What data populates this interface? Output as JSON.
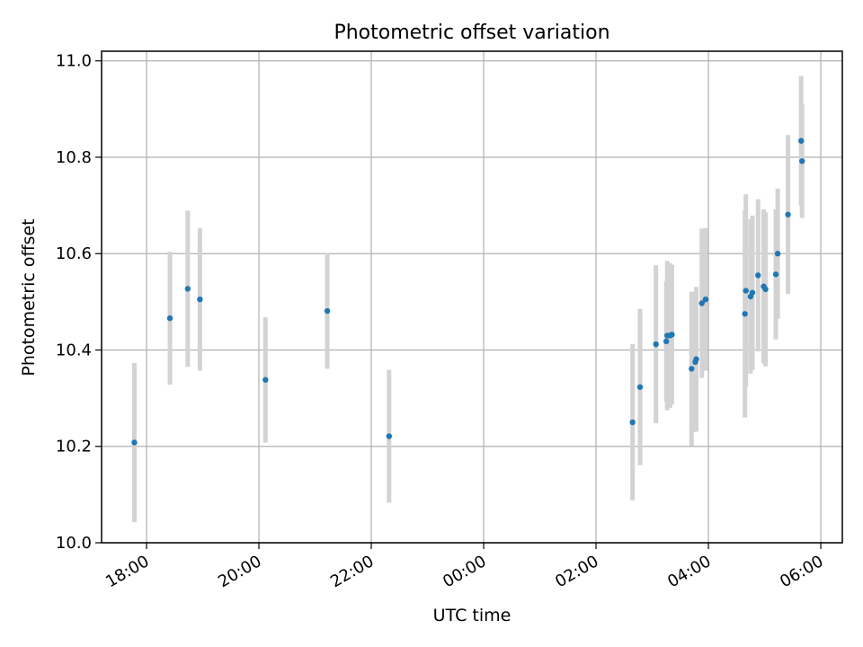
{
  "chart_data": {
    "type": "scatter",
    "title": "Photometric offset variation",
    "xlabel": "UTC time",
    "ylabel": "Photometric offset",
    "x_axis": "time",
    "xlim": [
      "17:12",
      "06:23"
    ],
    "ylim": [
      10.0,
      11.02
    ],
    "grid": true,
    "x_ticks": [
      {
        "value": "18:00",
        "label": "18:00"
      },
      {
        "value": "20:00",
        "label": "20:00"
      },
      {
        "value": "22:00",
        "label": "22:00"
      },
      {
        "value": "00:00",
        "label": "00:00"
      },
      {
        "value": "02:00",
        "label": "02:00"
      },
      {
        "value": "04:00",
        "label": "04:00"
      },
      {
        "value": "06:00",
        "label": "06:00"
      }
    ],
    "y_ticks": [
      {
        "value": 10.0,
        "label": "10.0"
      },
      {
        "value": 10.2,
        "label": "10.2"
      },
      {
        "value": 10.4,
        "label": "10.4"
      },
      {
        "value": 10.6,
        "label": "10.6"
      },
      {
        "value": 10.8,
        "label": "10.8"
      },
      {
        "value": 11.0,
        "label": "11.0"
      }
    ],
    "colors": {
      "point": "#1f77b4",
      "errorbar": "#d3d3d3",
      "grid": "#b0b0b0"
    },
    "points": [
      {
        "x": "17:47",
        "y": 10.208,
        "err": 0.165
      },
      {
        "x": "18:25",
        "y": 10.466,
        "err": 0.138
      },
      {
        "x": "18:44",
        "y": 10.527,
        "err": 0.162
      },
      {
        "x": "18:57",
        "y": 10.505,
        "err": 0.148
      },
      {
        "x": "20:07",
        "y": 10.338,
        "err": 0.13
      },
      {
        "x": "21:13",
        "y": 10.481,
        "err": 0.12
      },
      {
        "x": "22:19",
        "y": 10.221,
        "err": 0.138
      },
      {
        "x": "02:39",
        "y": 10.25,
        "err": 0.162
      },
      {
        "x": "02:47",
        "y": 10.323,
        "err": 0.162
      },
      {
        "x": "03:04",
        "y": 10.412,
        "err": 0.164
      },
      {
        "x": "03:15",
        "y": 10.418,
        "err": 0.125
      },
      {
        "x": "03:16",
        "y": 10.43,
        "err": 0.155
      },
      {
        "x": "03:19",
        "y": 10.43,
        "err": 0.15
      },
      {
        "x": "03:21",
        "y": 10.432,
        "err": 0.145
      },
      {
        "x": "03:42",
        "y": 10.361,
        "err": 0.16
      },
      {
        "x": "03:46",
        "y": 10.375,
        "err": 0.145
      },
      {
        "x": "03:47",
        "y": 10.381,
        "err": 0.15
      },
      {
        "x": "03:53",
        "y": 10.497,
        "err": 0.155
      },
      {
        "x": "03:57",
        "y": 10.505,
        "err": 0.148
      },
      {
        "x": "04:39",
        "y": 10.475,
        "err": 0.215
      },
      {
        "x": "04:40",
        "y": 10.523,
        "err": 0.2
      },
      {
        "x": "04:45",
        "y": 10.511,
        "err": 0.16
      },
      {
        "x": "04:47",
        "y": 10.519,
        "err": 0.16
      },
      {
        "x": "04:53",
        "y": 10.555,
        "err": 0.158
      },
      {
        "x": "04:59",
        "y": 10.532,
        "err": 0.16
      },
      {
        "x": "05:01",
        "y": 10.526,
        "err": 0.16
      },
      {
        "x": "05:12",
        "y": 10.557,
        "err": 0.135
      },
      {
        "x": "05:14",
        "y": 10.6,
        "err": 0.135
      },
      {
        "x": "05:25",
        "y": 10.681,
        "err": 0.165
      },
      {
        "x": "05:39",
        "y": 10.834,
        "err": 0.135
      },
      {
        "x": "05:40",
        "y": 10.792,
        "err": 0.118
      }
    ]
  }
}
